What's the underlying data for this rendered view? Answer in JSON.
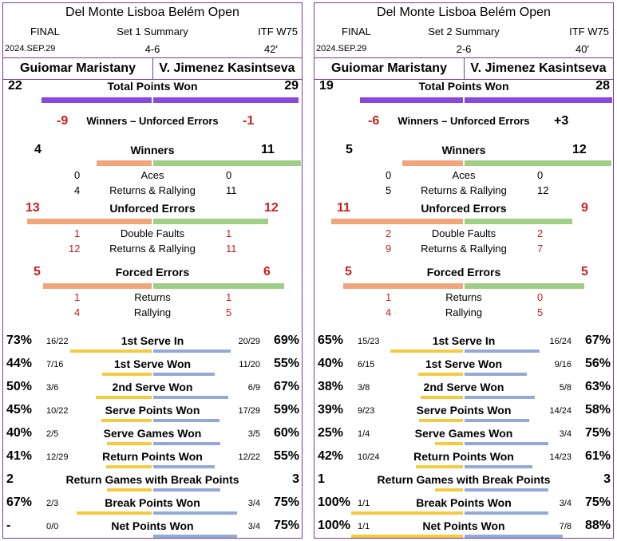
{
  "panels": [
    {
      "title": "Del Monte Lisboa Belém Open",
      "round": "FINAL",
      "set_label": "Set 1 Summary",
      "category": "ITF W75",
      "date": "2024.SEP.29",
      "score": "4-6",
      "duration": "42'",
      "player1": "Guiomar Maristany",
      "player2": "V. Jimenez Kasintseva",
      "total_points": {
        "label": "Total Points Won",
        "p1": "22",
        "p2": "29"
      },
      "wue": {
        "label": "Winners – Unforced Errors",
        "p1": "-9",
        "p2": "-1"
      },
      "winners": {
        "label": "Winners",
        "p1": "4",
        "p2": "11"
      },
      "aces": {
        "label": "Aces",
        "p1": "0",
        "p2": "0"
      },
      "win_rr": {
        "label": "Returns & Rallying",
        "p1": "4",
        "p2": "11"
      },
      "ue": {
        "label": "Unforced Errors",
        "p1": "13",
        "p2": "12"
      },
      "df": {
        "label": "Double Faults",
        "p1": "1",
        "p2": "1"
      },
      "ue_rr": {
        "label": "Returns & Rallying",
        "p1": "12",
        "p2": "11"
      },
      "fe": {
        "label": "Forced Errors",
        "p1": "5",
        "p2": "6"
      },
      "fe_ret": {
        "label": "Returns",
        "p1": "1",
        "p2": "1"
      },
      "fe_rally": {
        "label": "Rallying",
        "p1": "4",
        "p2": "5"
      },
      "serve_stats": [
        {
          "label": "1st Serve In",
          "p1_pct": "73%",
          "p1_frac": "16/22",
          "p2_frac": "20/29",
          "p2_pct": "69%",
          "p1_val": 0.73,
          "p2_val": 0.69
        },
        {
          "label": "1st Serve Won",
          "p1_pct": "44%",
          "p1_frac": "7/16",
          "p2_frac": "11/20",
          "p2_pct": "55%",
          "p1_val": 0.44,
          "p2_val": 0.55
        },
        {
          "label": "2nd Serve Won",
          "p1_pct": "50%",
          "p1_frac": "3/6",
          "p2_frac": "6/9",
          "p2_pct": "67%",
          "p1_val": 0.5,
          "p2_val": 0.67
        },
        {
          "label": "Serve Points Won",
          "p1_pct": "45%",
          "p1_frac": "10/22",
          "p2_frac": "17/29",
          "p2_pct": "59%",
          "p1_val": 0.45,
          "p2_val": 0.59
        },
        {
          "label": "Serve Games Won",
          "p1_pct": "40%",
          "p1_frac": "2/5",
          "p2_frac": "3/5",
          "p2_pct": "60%",
          "p1_val": 0.4,
          "p2_val": 0.6
        },
        {
          "label": "Return Points Won",
          "p1_pct": "41%",
          "p1_frac": "12/29",
          "p2_frac": "12/22",
          "p2_pct": "55%",
          "p1_val": 0.41,
          "p2_val": 0.55
        },
        {
          "label": "Return Games with Break Points",
          "p1_pct": "2",
          "p1_frac": "",
          "p2_frac": "",
          "p2_pct": "3",
          "p1_val": 0.4,
          "p2_val": 0.6
        },
        {
          "label": "Break Points Won",
          "p1_pct": "67%",
          "p1_frac": "2/3",
          "p2_frac": "3/4",
          "p2_pct": "75%",
          "p1_val": 0.67,
          "p2_val": 0.75
        },
        {
          "label": "Net Points Won",
          "p1_pct": "-",
          "p1_frac": "0/0",
          "p2_frac": "3/4",
          "p2_pct": "75%",
          "p1_val": 0.0,
          "p2_val": 0.75
        }
      ]
    },
    {
      "title": "Del Monte Lisboa Belém Open",
      "round": "FINAL",
      "set_label": "Set 2 Summary",
      "category": "ITF W75",
      "date": "2024.SEP.29",
      "score": "2-6",
      "duration": "40'",
      "player1": "Guiomar Maristany",
      "player2": "V. Jimenez Kasintseva",
      "total_points": {
        "label": "Total Points Won",
        "p1": "19",
        "p2": "28"
      },
      "wue": {
        "label": "Winners – Unforced Errors",
        "p1": "-6",
        "p2": "+3"
      },
      "winners": {
        "label": "Winners",
        "p1": "5",
        "p2": "12"
      },
      "aces": {
        "label": "Aces",
        "p1": "0",
        "p2": "0"
      },
      "win_rr": {
        "label": "Returns & Rallying",
        "p1": "5",
        "p2": "12"
      },
      "ue": {
        "label": "Unforced Errors",
        "p1": "11",
        "p2": "9"
      },
      "df": {
        "label": "Double Faults",
        "p1": "2",
        "p2": "2"
      },
      "ue_rr": {
        "label": "Returns & Rallying",
        "p1": "9",
        "p2": "7"
      },
      "fe": {
        "label": "Forced Errors",
        "p1": "5",
        "p2": "5"
      },
      "fe_ret": {
        "label": "Returns",
        "p1": "1",
        "p2": "0"
      },
      "fe_rally": {
        "label": "Rallying",
        "p1": "4",
        "p2": "5"
      },
      "serve_stats": [
        {
          "label": "1st Serve In",
          "p1_pct": "65%",
          "p1_frac": "15/23",
          "p2_frac": "16/24",
          "p2_pct": "67%",
          "p1_val": 0.65,
          "p2_val": 0.67
        },
        {
          "label": "1st Serve Won",
          "p1_pct": "40%",
          "p1_frac": "6/15",
          "p2_frac": "9/16",
          "p2_pct": "56%",
          "p1_val": 0.4,
          "p2_val": 0.56
        },
        {
          "label": "2nd Serve Won",
          "p1_pct": "38%",
          "p1_frac": "3/8",
          "p2_frac": "5/8",
          "p2_pct": "63%",
          "p1_val": 0.38,
          "p2_val": 0.63
        },
        {
          "label": "Serve Points Won",
          "p1_pct": "39%",
          "p1_frac": "9/23",
          "p2_frac": "14/24",
          "p2_pct": "58%",
          "p1_val": 0.39,
          "p2_val": 0.58
        },
        {
          "label": "Serve Games Won",
          "p1_pct": "25%",
          "p1_frac": "1/4",
          "p2_frac": "3/4",
          "p2_pct": "75%",
          "p1_val": 0.25,
          "p2_val": 0.75
        },
        {
          "label": "Return Points Won",
          "p1_pct": "42%",
          "p1_frac": "10/24",
          "p2_frac": "14/23",
          "p2_pct": "61%",
          "p1_val": 0.42,
          "p2_val": 0.61
        },
        {
          "label": "Return Games with Break Points",
          "p1_pct": "1",
          "p1_frac": "",
          "p2_frac": "",
          "p2_pct": "3",
          "p1_val": 0.25,
          "p2_val": 0.75
        },
        {
          "label": "Break Points Won",
          "p1_pct": "100%",
          "p1_frac": "1/1",
          "p2_frac": "3/4",
          "p2_pct": "75%",
          "p1_val": 1.0,
          "p2_val": 0.75
        },
        {
          "label": "Net Points Won",
          "p1_pct": "100%",
          "p1_frac": "1/1",
          "p2_frac": "7/8",
          "p2_pct": "88%",
          "p1_val": 1.0,
          "p2_val": 0.88
        }
      ]
    }
  ],
  "colors": {
    "border": "#7a3a9a",
    "total": "#8a47dc",
    "p1_count": "#f0a57b",
    "p2_count": "#9fcf86",
    "p1_serve": "#f4cb40",
    "p2_serve": "#93a9d6",
    "negative": "#cc1e1e"
  }
}
